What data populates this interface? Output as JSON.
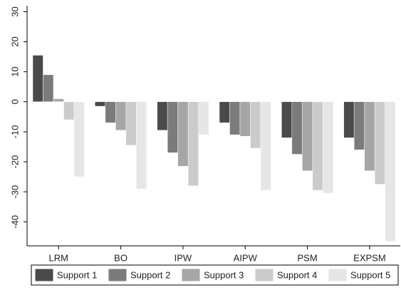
{
  "chart_data": {
    "type": "bar",
    "title": "",
    "xlabel": "",
    "ylabel": "",
    "categories": [
      "LRM",
      "BO",
      "IPW",
      "AIPW",
      "PSM",
      "EXPSM"
    ],
    "ylim": [
      -48,
      32
    ],
    "yticks": [
      30,
      20,
      10,
      0,
      -10,
      -20,
      -30,
      -40
    ],
    "grid": false,
    "legend_position": "bottom",
    "series": [
      {
        "name": "Support 1",
        "color": "#4a4a4a",
        "values": [
          15.5,
          -1.5,
          -9.5,
          -7,
          -12,
          -12
        ]
      },
      {
        "name": "Support 2",
        "color": "#7b7b7b",
        "values": [
          9,
          -7,
          -17,
          -11,
          -17.5,
          -16
        ]
      },
      {
        "name": "Support 3",
        "color": "#a6a6a6",
        "values": [
          1,
          -9.5,
          -21.5,
          -11.5,
          -23,
          -23
        ]
      },
      {
        "name": "Support 4",
        "color": "#cbcbcb",
        "values": [
          -6,
          -14.5,
          -28,
          -15.5,
          -29.5,
          -27.5
        ]
      },
      {
        "name": "Support 5",
        "color": "#e6e6e6",
        "values": [
          -25,
          -29,
          -11,
          -29.5,
          -30.5,
          -46.5
        ]
      }
    ]
  }
}
